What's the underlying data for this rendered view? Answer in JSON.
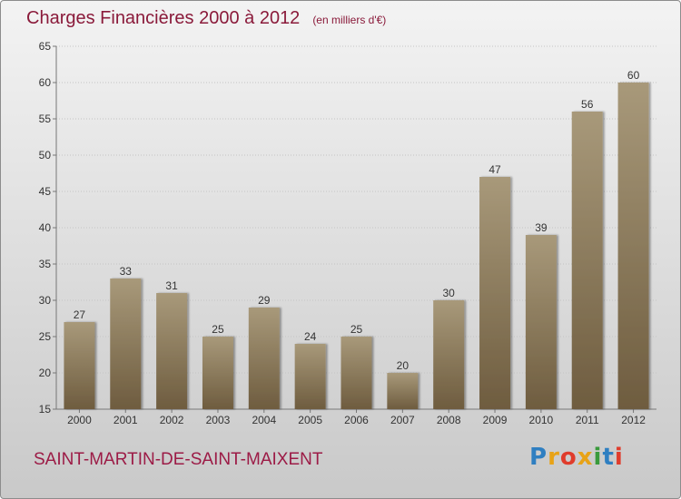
{
  "chart_data": {
    "type": "bar",
    "title": "Charges Financières 2000 à 2012",
    "subtitle": "(en milliers d'€)",
    "categories": [
      "2000",
      "2001",
      "2002",
      "2003",
      "2004",
      "2005",
      "2006",
      "2007",
      "2008",
      "2009",
      "2010",
      "2011",
      "2012"
    ],
    "values": [
      27,
      33,
      31,
      25,
      29,
      24,
      25,
      20,
      30,
      47,
      39,
      56,
      60
    ],
    "ylim": [
      15,
      65
    ],
    "yticks": [
      15,
      20,
      25,
      30,
      35,
      40,
      45,
      50,
      55,
      60,
      65
    ],
    "grid": true,
    "bar_color": "#8c7a5c"
  },
  "footer": {
    "commune": "SAINT-MARTIN-DE-SAINT-MAIXENT",
    "brand": "Proxiti",
    "brand_colors": [
      "#2f7fc1",
      "#e8a317",
      "#e03c2c",
      "#e8a317",
      "#3a9a3c",
      "#2f7fc1",
      "#e03c2c"
    ]
  }
}
